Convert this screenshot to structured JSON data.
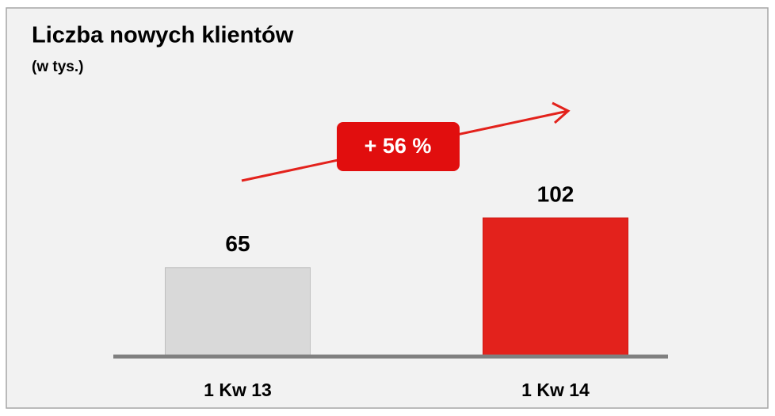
{
  "chart_data": {
    "type": "bar",
    "title": "Liczba nowych klientów",
    "subtitle": "(w tys.)",
    "categories": [
      "1 Kw 13",
      "1 Kw 14"
    ],
    "values": [
      65,
      102
    ],
    "colors": [
      "#d9d9d9",
      "#e3221c"
    ],
    "annotation": "+ 56 %"
  }
}
